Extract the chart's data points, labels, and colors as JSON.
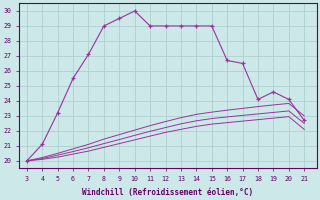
{
  "xlabel": "Windchill (Refroidissement éolien,°C)",
  "x_ticks": [
    3,
    4,
    5,
    6,
    7,
    8,
    9,
    10,
    11,
    12,
    13,
    14,
    15,
    16,
    17,
    18,
    19,
    20,
    21
  ],
  "xlim": [
    2.5,
    21.8
  ],
  "ylim": [
    19.5,
    30.5
  ],
  "y_ticks": [
    20,
    21,
    22,
    23,
    24,
    25,
    26,
    27,
    28,
    29,
    30
  ],
  "bg_color": "#cce8e8",
  "line_color": "#993399",
  "grid_color": "#aacccc",
  "main_line": {
    "x": [
      3,
      4,
      5,
      6,
      7,
      8,
      9,
      10,
      11,
      12,
      13,
      14,
      15,
      16,
      17,
      18,
      19,
      20,
      21
    ],
    "y": [
      20,
      21.1,
      23.2,
      25.5,
      27.1,
      29.0,
      29.5,
      30.0,
      29.0,
      29.0,
      29.0,
      29.0,
      29.0,
      26.7,
      26.5,
      24.1,
      24.6,
      24.1,
      22.7
    ]
  },
  "line2": {
    "x": [
      3,
      4,
      5,
      6,
      7,
      8,
      9,
      10,
      11,
      12,
      13,
      14,
      15,
      16,
      17,
      18,
      19,
      20,
      21
    ],
    "y": [
      20,
      20.1,
      20.25,
      20.45,
      20.65,
      20.9,
      21.15,
      21.4,
      21.65,
      21.9,
      22.1,
      22.3,
      22.45,
      22.55,
      22.65,
      22.75,
      22.85,
      22.95,
      22.1
    ]
  },
  "line3": {
    "x": [
      3,
      4,
      5,
      6,
      7,
      8,
      9,
      10,
      11,
      12,
      13,
      14,
      15,
      16,
      17,
      18,
      19,
      20,
      21
    ],
    "y": [
      20,
      20.15,
      20.38,
      20.62,
      20.87,
      21.15,
      21.42,
      21.7,
      21.97,
      22.22,
      22.47,
      22.67,
      22.82,
      22.93,
      23.03,
      23.13,
      23.23,
      23.33,
      22.5
    ]
  },
  "line4": {
    "x": [
      3,
      4,
      5,
      6,
      7,
      8,
      9,
      10,
      11,
      12,
      13,
      14,
      15,
      16,
      17,
      18,
      19,
      20,
      21
    ],
    "y": [
      20,
      20.22,
      20.5,
      20.8,
      21.1,
      21.45,
      21.75,
      22.05,
      22.35,
      22.62,
      22.88,
      23.1,
      23.25,
      23.38,
      23.5,
      23.62,
      23.73,
      23.83,
      23.0
    ]
  }
}
